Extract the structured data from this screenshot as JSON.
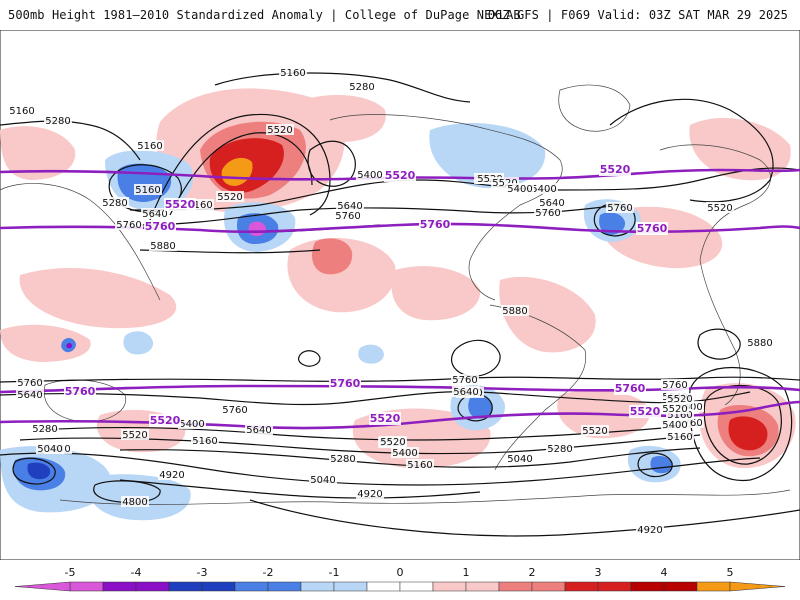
{
  "header": {
    "left_title": "500mb Height 1981–2010 Standardized Anomaly | College of DuPage NEXLAB",
    "right_title": "06Z GFS | F069 Valid: 03Z SAT MAR 29 2025"
  },
  "colors": {
    "neg5": "#d957d9",
    "neg4": "#8a10c8",
    "neg3": "#1f3fbf",
    "neg2": "#4a7fe6",
    "neg1": "#b8d6f5",
    "zero": "#ffffff",
    "pos1": "#f9c8c8",
    "pos2": "#ee7f7f",
    "pos3": "#d62020",
    "pos4": "#b80000",
    "pos5": "#f59a16",
    "contour": "#111111",
    "highlight": "#8e1fbf",
    "coast": "#444444"
  },
  "colorbar": {
    "ticks": [
      "-5",
      "-4",
      "-3",
      "-2",
      "-1",
      "0",
      "1",
      "2",
      "3",
      "4",
      "5"
    ],
    "range": [
      -6,
      6
    ]
  },
  "contour_labels": [
    "5160",
    "5280",
    "5160",
    "5280",
    "5160",
    "5160",
    "5520",
    "5280",
    "5160",
    "5400",
    "5520",
    "5640",
    "5760",
    "5880",
    "5520",
    "5640",
    "5760",
    "5400",
    "5520",
    "5520",
    "5400",
    "5640",
    "5760",
    "5760",
    "5520",
    "5880",
    "5880",
    "5760",
    "5640",
    "5760",
    "5760",
    "5640",
    "5760",
    "5640",
    "5760",
    "5400",
    "5520",
    "5520",
    "5400",
    "5640",
    "5280",
    "5520",
    "5160",
    "5400",
    "5520",
    "5040",
    "5160",
    "5280",
    "5520",
    "5400",
    "5160",
    "5040",
    "5280",
    "5520",
    "5040",
    "4920",
    "4800",
    "5040",
    "4920",
    "4920",
    "5640",
    "5040",
    "5160"
  ],
  "highlight_labels": [
    "5520",
    "5760",
    "5520",
    "5760",
    "5520",
    "5760",
    "5760",
    "5760",
    "5760",
    "5520",
    "5520",
    "5520"
  ]
}
